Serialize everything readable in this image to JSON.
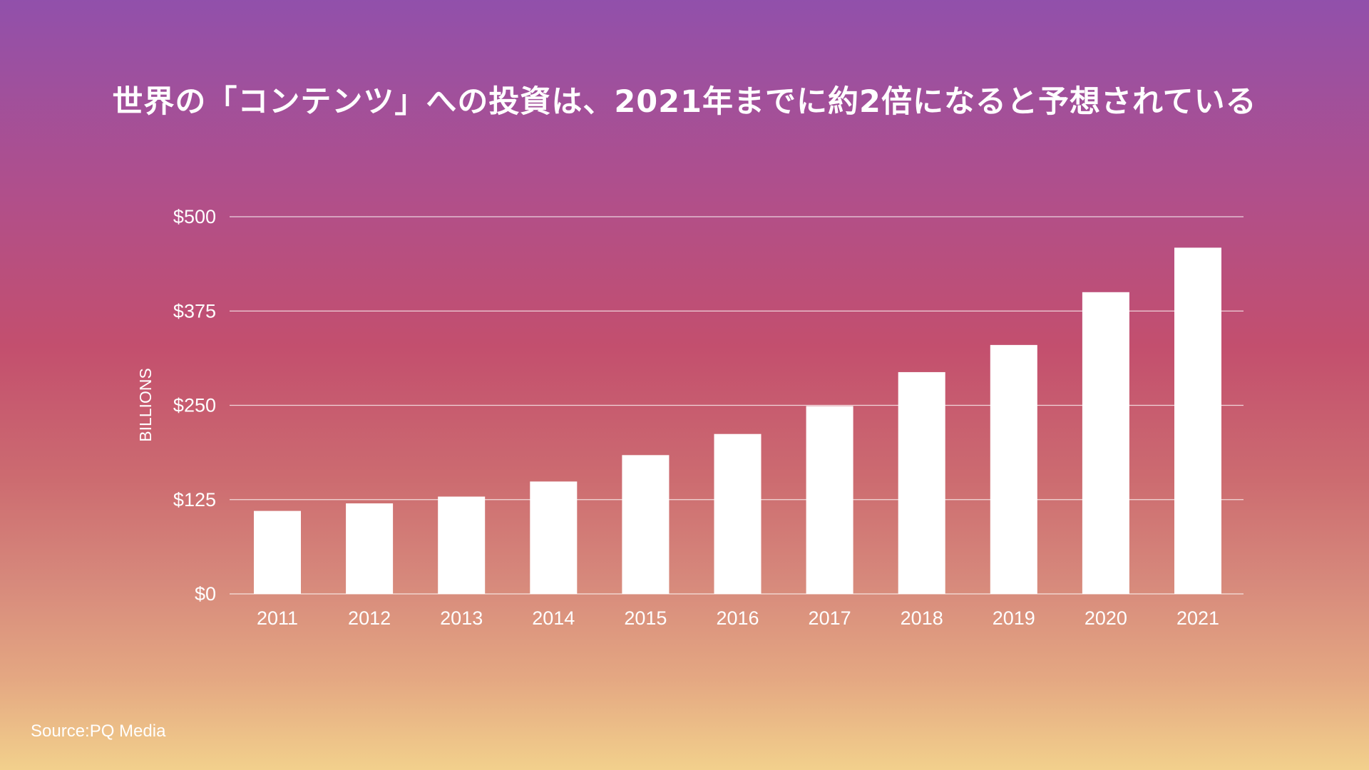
{
  "title": "世界の「コンテンツ」への投資は、2021年までに約2倍になると予想されている",
  "source": "Source:PQ Media",
  "chart_data": {
    "type": "bar",
    "categories": [
      "2011",
      "2012",
      "2013",
      "2014",
      "2015",
      "2016",
      "2017",
      "2018",
      "2019",
      "2020",
      "2021"
    ],
    "values": [
      110,
      120,
      129,
      149,
      184,
      212,
      249,
      294,
      330,
      400,
      459
    ],
    "ylabel": "BILLIONS",
    "xlabel": "",
    "ylim": [
      0,
      500
    ],
    "yticks": [
      0,
      125,
      250,
      375,
      500
    ],
    "ytick_labels": [
      "$0",
      "$125",
      "$250",
      "$375",
      "$500"
    ],
    "grid": true,
    "bar_color": "#ffffff",
    "gridline_color": "#ffffff"
  }
}
